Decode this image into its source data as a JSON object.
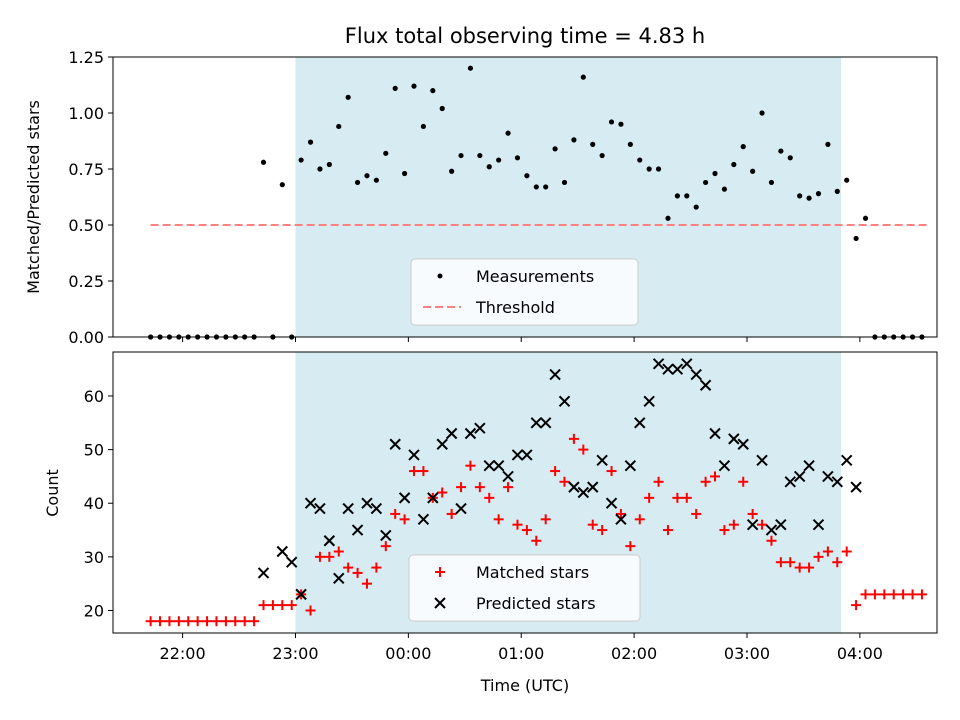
{
  "title": "Flux total observing time = 4.83 h",
  "colors": {
    "observing_band": "#add8e6",
    "measurement_marker": "#000000",
    "threshold_line": "#ff8080",
    "matched_marker": "#ff0000",
    "predicted_marker": "#000000"
  },
  "chart_data": [
    {
      "type": "scatter",
      "panel": "top",
      "ylabel": "Matched/Predicted stars",
      "xlim": [
        "21:23",
        "04:41"
      ],
      "ylim": [
        0,
        1.25
      ],
      "yticks": [
        "0.00",
        "0.25",
        "0.50",
        "0.75",
        "1.00",
        "1.25"
      ],
      "grid": false,
      "legend_position": "lower center",
      "shaded_interval": [
        "23:00",
        "03:50"
      ],
      "threshold": {
        "name": "Threshold",
        "value": 0.5,
        "x": [
          "21:43",
          "04:37"
        ],
        "style": "dashed"
      },
      "series": [
        {
          "name": "Measurements",
          "marker": "dot",
          "points": [
            [
              "21:43",
              0
            ],
            [
              "21:48",
              0
            ],
            [
              "21:53",
              0
            ],
            [
              "21:58",
              0
            ],
            [
              "22:03",
              0
            ],
            [
              "22:08",
              0
            ],
            [
              "22:13",
              0
            ],
            [
              "22:18",
              0
            ],
            [
              "22:23",
              0
            ],
            [
              "22:28",
              0
            ],
            [
              "22:33",
              0
            ],
            [
              "22:38",
              0
            ],
            [
              "22:43",
              0.78
            ],
            [
              "22:48",
              0
            ],
            [
              "22:53",
              0.68
            ],
            [
              "22:58",
              0
            ],
            [
              "23:03",
              0.79
            ],
            [
              "23:08",
              0.87
            ],
            [
              "23:13",
              0.75
            ],
            [
              "23:18",
              0.77
            ],
            [
              "23:23",
              0.94
            ],
            [
              "23:28",
              1.07
            ],
            [
              "23:33",
              0.69
            ],
            [
              "23:38",
              0.72
            ],
            [
              "23:43",
              0.7
            ],
            [
              "23:48",
              0.82
            ],
            [
              "23:53",
              1.11
            ],
            [
              "23:58",
              0.73
            ],
            [
              "00:03",
              1.12
            ],
            [
              "00:08",
              0.94
            ],
            [
              "00:13",
              1.1
            ],
            [
              "00:18",
              1.02
            ],
            [
              "00:23",
              0.74
            ],
            [
              "00:28",
              0.81
            ],
            [
              "00:33",
              1.2
            ],
            [
              "00:38",
              0.81
            ],
            [
              "00:43",
              0.76
            ],
            [
              "00:48",
              0.79
            ],
            [
              "00:53",
              0.91
            ],
            [
              "00:58",
              0.8
            ],
            [
              "01:03",
              0.72
            ],
            [
              "01:08",
              0.67
            ],
            [
              "01:13",
              0.67
            ],
            [
              "01:18",
              0.84
            ],
            [
              "01:23",
              0.69
            ],
            [
              "01:28",
              0.88
            ],
            [
              "01:33",
              1.16
            ],
            [
              "01:38",
              0.86
            ],
            [
              "01:43",
              0.81
            ],
            [
              "01:48",
              0.96
            ],
            [
              "01:53",
              0.95
            ],
            [
              "01:58",
              0.86
            ],
            [
              "02:03",
              0.79
            ],
            [
              "02:08",
              0.75
            ],
            [
              "02:13",
              0.75
            ],
            [
              "02:18",
              0.53
            ],
            [
              "02:23",
              0.63
            ],
            [
              "02:28",
              0.63
            ],
            [
              "02:33",
              0.58
            ],
            [
              "02:38",
              0.69
            ],
            [
              "02:43",
              0.73
            ],
            [
              "02:48",
              0.66
            ],
            [
              "02:53",
              0.77
            ],
            [
              "02:58",
              0.85
            ],
            [
              "03:03",
              0.74
            ],
            [
              "03:08",
              1.0
            ],
            [
              "03:13",
              0.69
            ],
            [
              "03:18",
              0.83
            ],
            [
              "03:23",
              0.8
            ],
            [
              "03:28",
              0.63
            ],
            [
              "03:33",
              0.62
            ],
            [
              "03:38",
              0.64
            ],
            [
              "03:43",
              0.86
            ],
            [
              "03:48",
              0.65
            ],
            [
              "03:53",
              0.7
            ],
            [
              "03:58",
              0.44
            ],
            [
              "04:03",
              0.53
            ],
            [
              "04:08",
              0
            ],
            [
              "04:13",
              0
            ],
            [
              "04:18",
              0
            ],
            [
              "04:23",
              0
            ],
            [
              "04:28",
              0
            ],
            [
              "04:33",
              0
            ]
          ]
        }
      ]
    },
    {
      "type": "scatter",
      "panel": "bottom",
      "xlabel": "Time (UTC)",
      "ylabel": "Count",
      "xlim": [
        "21:23",
        "04:41"
      ],
      "ylim": [
        15.8,
        68.2
      ],
      "xticks": [
        "22:00",
        "23:00",
        "00:00",
        "01:00",
        "02:00",
        "03:00",
        "04:00"
      ],
      "yticks": [
        "20",
        "30",
        "40",
        "50",
        "60"
      ],
      "grid": false,
      "legend_position": "lower center",
      "shaded_interval": [
        "23:00",
        "03:50"
      ],
      "series": [
        {
          "name": "Matched stars",
          "marker": "plus",
          "points": [
            [
              "21:43",
              18
            ],
            [
              "21:48",
              18
            ],
            [
              "21:53",
              18
            ],
            [
              "21:58",
              18
            ],
            [
              "22:03",
              18
            ],
            [
              "22:08",
              18
            ],
            [
              "22:13",
              18
            ],
            [
              "22:18",
              18
            ],
            [
              "22:23",
              18
            ],
            [
              "22:28",
              18
            ],
            [
              "22:33",
              18
            ],
            [
              "22:38",
              18
            ],
            [
              "22:43",
              21
            ],
            [
              "22:48",
              21
            ],
            [
              "22:53",
              21
            ],
            [
              "22:58",
              21
            ],
            [
              "23:03",
              23
            ],
            [
              "23:08",
              20
            ],
            [
              "23:13",
              30
            ],
            [
              "23:18",
              30
            ],
            [
              "23:23",
              31
            ],
            [
              "23:28",
              28
            ],
            [
              "23:33",
              27
            ],
            [
              "23:38",
              25
            ],
            [
              "23:43",
              28
            ],
            [
              "23:48",
              32
            ],
            [
              "23:53",
              38
            ],
            [
              "23:58",
              37
            ],
            [
              "00:03",
              46
            ],
            [
              "00:08",
              46
            ],
            [
              "00:13",
              41
            ],
            [
              "00:18",
              42
            ],
            [
              "00:23",
              38
            ],
            [
              "00:28",
              43
            ],
            [
              "00:33",
              47
            ],
            [
              "00:38",
              43
            ],
            [
              "00:43",
              41
            ],
            [
              "00:48",
              37
            ],
            [
              "00:53",
              43
            ],
            [
              "00:58",
              36
            ],
            [
              "01:03",
              35
            ],
            [
              "01:08",
              33
            ],
            [
              "01:13",
              37
            ],
            [
              "01:18",
              46
            ],
            [
              "01:23",
              44
            ],
            [
              "01:28",
              52
            ],
            [
              "01:33",
              50
            ],
            [
              "01:38",
              36
            ],
            [
              "01:43",
              35
            ],
            [
              "01:48",
              46
            ],
            [
              "01:53",
              38
            ],
            [
              "01:58",
              32
            ],
            [
              "02:03",
              37
            ],
            [
              "02:08",
              41
            ],
            [
              "02:13",
              44
            ],
            [
              "02:18",
              35
            ],
            [
              "02:23",
              41
            ],
            [
              "02:28",
              41
            ],
            [
              "02:33",
              38
            ],
            [
              "02:38",
              44
            ],
            [
              "02:43",
              45
            ],
            [
              "02:48",
              35
            ],
            [
              "02:53",
              36
            ],
            [
              "02:58",
              44
            ],
            [
              "03:03",
              38
            ],
            [
              "03:08",
              36
            ],
            [
              "03:13",
              33
            ],
            [
              "03:18",
              29
            ],
            [
              "03:23",
              29
            ],
            [
              "03:28",
              28
            ],
            [
              "03:33",
              28
            ],
            [
              "03:38",
              30
            ],
            [
              "03:43",
              31
            ],
            [
              "03:48",
              29
            ],
            [
              "03:53",
              31
            ],
            [
              "03:58",
              21
            ],
            [
              "04:03",
              23
            ],
            [
              "04:08",
              23
            ],
            [
              "04:13",
              23
            ],
            [
              "04:18",
              23
            ],
            [
              "04:23",
              23
            ],
            [
              "04:28",
              23
            ],
            [
              "04:33",
              23
            ]
          ]
        },
        {
          "name": "Predicted stars",
          "marker": "x",
          "points": [
            [
              "22:43",
              27
            ],
            [
              "22:53",
              31
            ],
            [
              "22:58",
              29
            ],
            [
              "23:03",
              23
            ],
            [
              "23:08",
              40
            ],
            [
              "23:13",
              39
            ],
            [
              "23:18",
              33
            ],
            [
              "23:23",
              26
            ],
            [
              "23:28",
              39
            ],
            [
              "23:33",
              35
            ],
            [
              "23:38",
              40
            ],
            [
              "23:43",
              39
            ],
            [
              "23:48",
              34
            ],
            [
              "23:53",
              51
            ],
            [
              "23:58",
              41
            ],
            [
              "00:03",
              49
            ],
            [
              "00:08",
              37
            ],
            [
              "00:13",
              41
            ],
            [
              "00:18",
              51
            ],
            [
              "00:23",
              53
            ],
            [
              "00:28",
              39
            ],
            [
              "00:33",
              53
            ],
            [
              "00:38",
              54
            ],
            [
              "00:43",
              47
            ],
            [
              "00:48",
              47
            ],
            [
              "00:53",
              45
            ],
            [
              "00:58",
              49
            ],
            [
              "01:03",
              49
            ],
            [
              "01:08",
              55
            ],
            [
              "01:13",
              55
            ],
            [
              "01:18",
              64
            ],
            [
              "01:23",
              59
            ],
            [
              "01:28",
              43
            ],
            [
              "01:33",
              42
            ],
            [
              "01:38",
              43
            ],
            [
              "01:43",
              48
            ],
            [
              "01:48",
              40
            ],
            [
              "01:53",
              37
            ],
            [
              "01:58",
              47
            ],
            [
              "02:03",
              55
            ],
            [
              "02:08",
              59
            ],
            [
              "02:13",
              66
            ],
            [
              "02:18",
              65
            ],
            [
              "02:23",
              65
            ],
            [
              "02:28",
              66
            ],
            [
              "02:33",
              64
            ],
            [
              "02:38",
              62
            ],
            [
              "02:43",
              53
            ],
            [
              "02:48",
              47
            ],
            [
              "02:53",
              52
            ],
            [
              "02:58",
              51
            ],
            [
              "03:03",
              36
            ],
            [
              "03:08",
              48
            ],
            [
              "03:13",
              35
            ],
            [
              "03:18",
              36
            ],
            [
              "03:23",
              44
            ],
            [
              "03:28",
              45
            ],
            [
              "03:33",
              47
            ],
            [
              "03:38",
              36
            ],
            [
              "03:43",
              45
            ],
            [
              "03:48",
              44
            ],
            [
              "03:53",
              48
            ],
            [
              "03:58",
              43
            ]
          ]
        }
      ]
    }
  ]
}
